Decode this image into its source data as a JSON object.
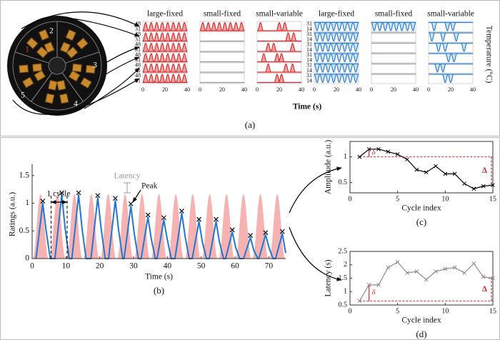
{
  "chart_data": [
    {
      "type": "pulse-grid",
      "caption": "(a)",
      "x_label": "Time (s)",
      "y_label": "Temperature (°C)",
      "photo_labels": [
        "1",
        "2",
        "3",
        "4",
        "5"
      ],
      "xlim": [
        0,
        40
      ],
      "xticks": [
        0,
        20,
        40
      ],
      "columns": [
        {
          "title": "large-fixed",
          "color": "#d62728",
          "fill": "#f4a3a3",
          "ylim": [
            31,
            48
          ],
          "yticks": [
            31,
            48
          ],
          "baseline": 31,
          "level": 48,
          "rows": [
            [
              2.5,
              7.5,
              12.5,
              17.5,
              22.5,
              27.5,
              32.5,
              37.5
            ],
            [
              2.5,
              7.5,
              12.5,
              17.5,
              22.5,
              27.5,
              32.5,
              37.5
            ],
            [
              2.5,
              7.5,
              12.5,
              17.5,
              22.5,
              27.5,
              32.5,
              37.5
            ],
            [
              2.5,
              7.5,
              12.5,
              17.5,
              22.5,
              27.5,
              32.5,
              37.5
            ],
            [
              2.5,
              7.5,
              12.5,
              17.5,
              22.5,
              27.5,
              32.5,
              37.5
            ],
            [
              2.5,
              7.5,
              12.5,
              17.5,
              22.5,
              27.5,
              32.5,
              37.5
            ]
          ]
        },
        {
          "title": "small-fixed",
          "color": "#d62728",
          "fill": "#f4a3a3",
          "ylim": [
            31,
            48
          ],
          "yticks": [
            31,
            48
          ],
          "baseline": 31,
          "level": 48,
          "rows": [
            [
              2.5,
              7.5,
              12.5,
              17.5,
              22.5,
              27.5,
              32.5,
              37.5
            ],
            [],
            [],
            [],
            [],
            []
          ]
        },
        {
          "title": "small-variable",
          "color": "#d62728",
          "fill": "#f4a3a3",
          "ylim": [
            31,
            48
          ],
          "yticks": [
            31,
            48
          ],
          "baseline": 31,
          "level": 48,
          "rows": [
            [
              3,
              20,
              25
            ],
            [
              28,
              33
            ],
            [
              10,
              15,
              32
            ],
            [
              6,
              18,
              22
            ],
            [
              10,
              26,
              32
            ],
            [
              18,
              22
            ]
          ]
        },
        {
          "title": "large-fixed",
          "color": "#1f77d4",
          "fill": "#cfe3f7",
          "ylim": [
            14,
            31
          ],
          "yticks": [
            14,
            31
          ],
          "baseline": 31,
          "level": 14,
          "rows": [
            [
              2.5,
              7.5,
              12.5,
              17.5,
              22.5,
              27.5,
              32.5,
              37.5
            ],
            [
              2.5,
              7.5,
              12.5,
              17.5,
              22.5,
              27.5,
              32.5,
              37.5
            ],
            [
              2.5,
              7.5,
              12.5,
              17.5,
              22.5,
              27.5,
              32.5,
              37.5
            ],
            [
              2.5,
              7.5,
              12.5,
              17.5,
              22.5,
              27.5,
              32.5,
              37.5
            ],
            [
              2.5,
              7.5,
              12.5,
              17.5,
              22.5,
              27.5,
              32.5,
              37.5
            ],
            [
              2.5,
              7.5,
              12.5,
              17.5,
              22.5,
              27.5,
              32.5,
              37.5
            ]
          ]
        },
        {
          "title": "small-fixed",
          "color": "#1f77d4",
          "fill": "#cfe3f7",
          "ylim": [
            14,
            31
          ],
          "yticks": [
            14,
            31
          ],
          "baseline": 31,
          "level": 14,
          "rows": [
            [
              2.5,
              7.5,
              12.5,
              17.5,
              22.5,
              27.5,
              32.5,
              37.5
            ],
            [],
            [],
            [],
            [],
            []
          ]
        },
        {
          "title": "small-variable",
          "color": "#1f77d4",
          "fill": "#cfe3f7",
          "ylim": [
            14,
            31
          ],
          "yticks": [
            14,
            31
          ],
          "baseline": 31,
          "level": 14,
          "rows": [
            [
              5,
              17,
              22
            ],
            [
              3,
              13,
              25
            ],
            [
              9,
              15,
              32
            ],
            [
              18,
              23
            ],
            [
              8,
              13
            ],
            [
              15,
              20
            ]
          ]
        }
      ]
    },
    {
      "type": "stimulus",
      "caption": "(b)",
      "x_label": "Time (s)",
      "y_label": "Ratings (a.u.)",
      "xlim": [
        0,
        75
      ],
      "xticks": [
        0,
        10,
        20,
        30,
        40,
        50,
        60,
        70
      ],
      "ylim": [
        0,
        1.6
      ],
      "yticks": [
        0,
        0.5,
        1,
        1.5
      ],
      "stimulus": {
        "color": "#f4a3a3",
        "x": [
          2.5,
          7.5,
          12.5,
          17.5,
          22.5,
          27.5,
          32.5,
          37.5,
          42.5,
          47.5,
          52.5,
          57.5,
          62.5,
          67.5,
          72.5
        ],
        "values": [
          1.17,
          1.17,
          1.17,
          1.17,
          1.17,
          1.17,
          1.17,
          1.17,
          1.17,
          1.17,
          1.17,
          1.17,
          1.17,
          1.17,
          1.17
        ]
      },
      "series": [
        {
          "color": "#1f77d4",
          "x": [
            1.15,
            3.15,
            4.15,
            5.35,
            6.75,
            8.75,
            9.75,
            10.95,
            11.75,
            13.75,
            14.75,
            15.95,
            17.4,
            19.4,
            20.4,
            21.6,
            22.6,
            24.6,
            25.6,
            26.8,
            27.2,
            29.2,
            30.2,
            31.4,
            32.25,
            34.25,
            35.25,
            36.45,
            36.95,
            38.95,
            39.95,
            41.15,
            42.25,
            44.25,
            45.25,
            46.45,
            47.35,
            49.35,
            50.35,
            51.55,
            52.4,
            54.4,
            55.4,
            56.6,
            57.2,
            59.2,
            60.2,
            61.4,
            62.55,
            64.55,
            65.55,
            66.75,
            67.05,
            69.05,
            70.05,
            71.25,
            72,
            74,
            75
          ],
          "values": [
            0,
            1,
            0.5,
            0,
            0,
            1.15,
            0.55,
            0,
            0,
            1.15,
            0.55,
            0,
            0,
            1.1,
            0.55,
            0,
            0,
            1.05,
            0.5,
            0,
            0,
            0.95,
            0.45,
            0,
            0,
            0.75,
            0.35,
            0,
            0,
            0.7,
            0.35,
            0,
            0,
            0.82,
            0.4,
            0,
            0,
            0.67,
            0.3,
            0,
            0,
            0.67,
            0.3,
            0,
            0,
            0.48,
            0.2,
            0,
            0,
            0.38,
            0.15,
            0,
            0,
            0.43,
            0.2,
            0,
            0,
            0.45,
            0.1
          ]
        }
      ],
      "peaks": {
        "x": [
          3.15,
          8.75,
          13.75,
          19.4,
          24.6,
          29.2,
          34.25,
          38.95,
          44.25,
          49.35,
          54.4,
          59.2,
          64.55,
          69.05,
          74
        ],
        "values": [
          1,
          1.15,
          1.15,
          1.1,
          1.05,
          0.95,
          0.75,
          0.7,
          0.82,
          0.67,
          0.67,
          0.48,
          0.38,
          0.43,
          0.45
        ]
      },
      "annotations": {
        "cycle": "1 cycle",
        "latency": "Latency",
        "peak": "Peak"
      }
    },
    {
      "type": "line",
      "caption": "(c)",
      "x_label": "Cycle index",
      "y_label": "Amplitude (a.u.)",
      "xlim": [
        0,
        15
      ],
      "xticks": [
        0,
        5,
        10,
        15
      ],
      "ylim": [
        0.3,
        1.3
      ],
      "yticks": [
        0.5,
        1
      ],
      "color": "#000000",
      "x": [
        1,
        2,
        3,
        4,
        5,
        6,
        7,
        8,
        9,
        10,
        11,
        12,
        13,
        14,
        15
      ],
      "values": [
        1,
        1.15,
        1.15,
        1.1,
        1.05,
        0.95,
        0.75,
        0.7,
        0.82,
        0.67,
        0.67,
        0.48,
        0.38,
        0.43,
        0.45
      ],
      "annotations": {
        "small_change": "δ",
        "total_change": "Δ"
      }
    },
    {
      "type": "line",
      "caption": "(d)",
      "x_label": "Cycle index",
      "y_label": "Latency (s)",
      "xlim": [
        0,
        15
      ],
      "xticks": [
        0,
        5,
        10,
        15
      ],
      "ylim": [
        0.5,
        2.5
      ],
      "yticks": [
        0.5,
        1,
        1.5,
        2,
        2.5
      ],
      "color": "#8c8c8c",
      "x": [
        1,
        2,
        3,
        4,
        5,
        6,
        7,
        8,
        9,
        10,
        11,
        12,
        13,
        14,
        15
      ],
      "values": [
        0.65,
        1.25,
        1.25,
        1.9,
        2.1,
        1.7,
        1.75,
        1.45,
        1.75,
        1.85,
        1.9,
        1.7,
        2.05,
        1.55,
        1.5
      ],
      "annotations": {
        "small_change": "δ",
        "total_change": "Δ"
      }
    }
  ]
}
